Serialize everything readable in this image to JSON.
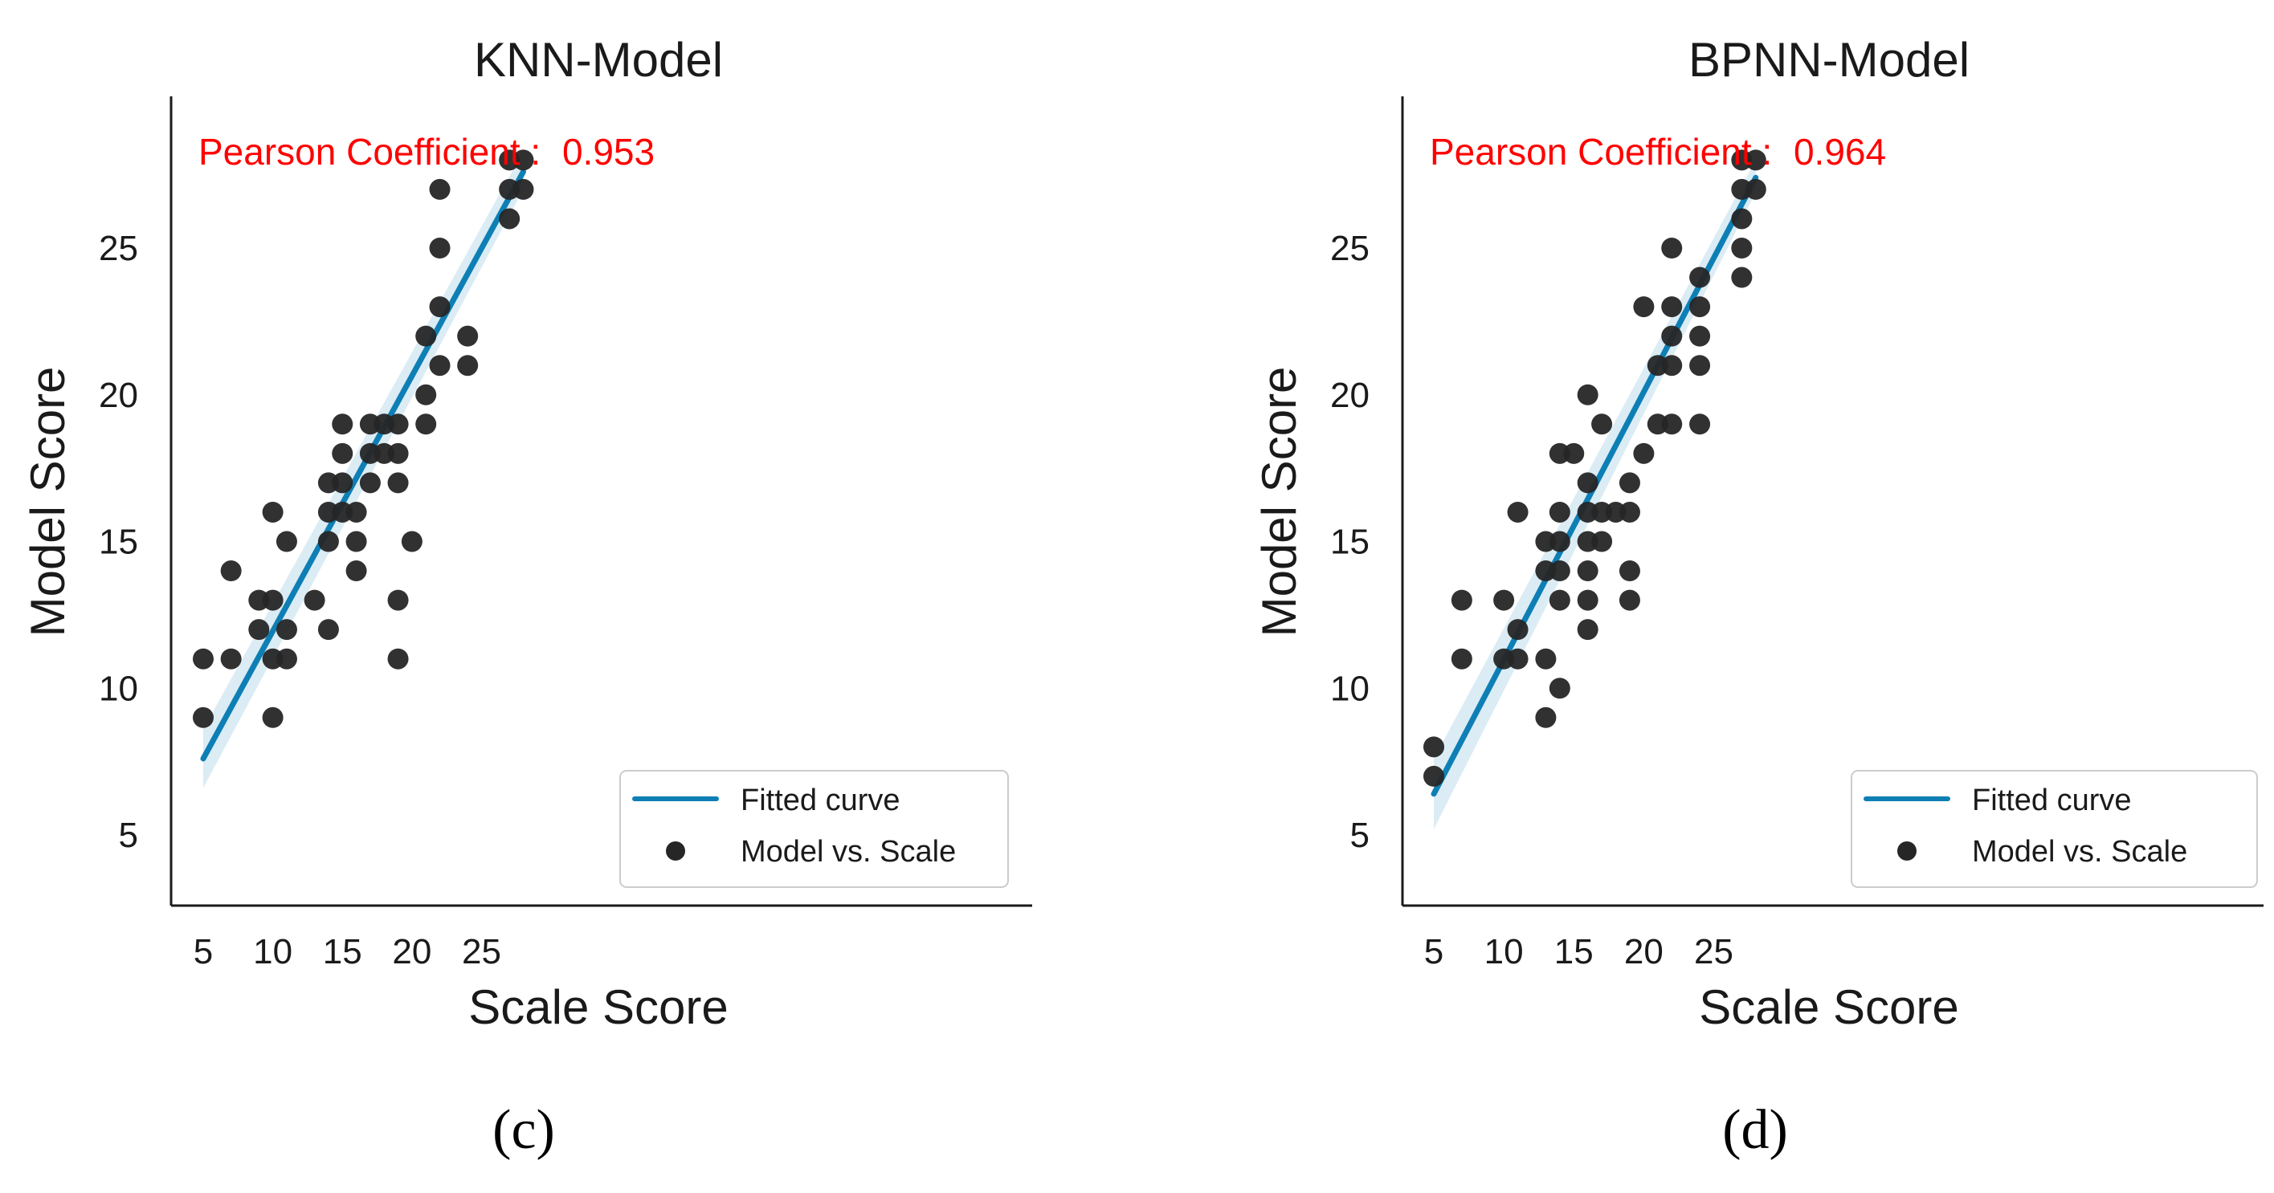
{
  "chart_data": [
    {
      "type": "scatter",
      "title": "KNN-Model",
      "xlabel": "Scale Score",
      "ylabel": "Model Score",
      "xlim": [
        4,
        29.5
      ],
      "ylim": [
        4,
        29.5
      ],
      "xticks": [
        5,
        10,
        15,
        20,
        25
      ],
      "yticks": [
        5,
        10,
        15,
        20,
        25
      ],
      "grid": false,
      "legend_position": "bottom-right",
      "caption": "(c)",
      "annotation": {
        "label": "Pearson Coefficient :",
        "value": "0.953"
      },
      "series": [
        {
          "name": "Fitted curve",
          "kind": "line",
          "color": "#0e7fb5",
          "x": [
            5,
            28
          ],
          "y": [
            7.6,
            27.6
          ],
          "ci_lower": [
            6.6,
            27.0
          ],
          "ci_upper": [
            8.6,
            28.3
          ]
        },
        {
          "name": "Model vs. Scale",
          "kind": "scatter",
          "color": "#262626",
          "points": [
            [
              5,
              11
            ],
            [
              5,
              9
            ],
            [
              7,
              14
            ],
            [
              7,
              11
            ],
            [
              9,
              13
            ],
            [
              9,
              12
            ],
            [
              10,
              16
            ],
            [
              10,
              13
            ],
            [
              10,
              11
            ],
            [
              10,
              9
            ],
            [
              11,
              15
            ],
            [
              11,
              12
            ],
            [
              11,
              11
            ],
            [
              13,
              13
            ],
            [
              14,
              17
            ],
            [
              14,
              16
            ],
            [
              14,
              15
            ],
            [
              14,
              12
            ],
            [
              15,
              19
            ],
            [
              15,
              18
            ],
            [
              15,
              17
            ],
            [
              15,
              16
            ],
            [
              16,
              16
            ],
            [
              16,
              15
            ],
            [
              16,
              14
            ],
            [
              17,
              19
            ],
            [
              17,
              18
            ],
            [
              17,
              17
            ],
            [
              18,
              19
            ],
            [
              18,
              18
            ],
            [
              19,
              19
            ],
            [
              19,
              18
            ],
            [
              19,
              17
            ],
            [
              19,
              13
            ],
            [
              19,
              11
            ],
            [
              20,
              15
            ],
            [
              21,
              22
            ],
            [
              21,
              20
            ],
            [
              21,
              19
            ],
            [
              22,
              27
            ],
            [
              22,
              25
            ],
            [
              22,
              23
            ],
            [
              22,
              21
            ],
            [
              24,
              22
            ],
            [
              24,
              21
            ],
            [
              27,
              28
            ],
            [
              27,
              27
            ],
            [
              27,
              26
            ],
            [
              28,
              28
            ],
            [
              28,
              27
            ]
          ]
        }
      ]
    },
    {
      "type": "scatter",
      "title": "BPNN-Model",
      "xlabel": "Scale Score",
      "ylabel": "Model Score",
      "xlim": [
        4,
        29.5
      ],
      "ylim": [
        4,
        29.5
      ],
      "xticks": [
        5,
        10,
        15,
        20,
        25
      ],
      "yticks": [
        5,
        10,
        15,
        20,
        25
      ],
      "grid": false,
      "legend_position": "bottom-right",
      "caption": "(d)",
      "annotation": {
        "label": "Pearson Coefficient :",
        "value": "0.964"
      },
      "series": [
        {
          "name": "Fitted curve",
          "kind": "line",
          "color": "#0e7fb5",
          "x": [
            5,
            28
          ],
          "y": [
            6.4,
            27.4
          ],
          "ci_lower": [
            5.2,
            26.9
          ],
          "ci_upper": [
            7.6,
            28.0
          ]
        },
        {
          "name": "Model vs. Scale",
          "kind": "scatter",
          "color": "#262626",
          "points": [
            [
              5,
              8
            ],
            [
              5,
              7
            ],
            [
              7,
              13
            ],
            [
              7,
              11
            ],
            [
              10,
              13
            ],
            [
              10,
              11
            ],
            [
              11,
              16
            ],
            [
              11,
              12
            ],
            [
              11,
              11
            ],
            [
              13,
              15
            ],
            [
              13,
              14
            ],
            [
              13,
              11
            ],
            [
              13,
              9
            ],
            [
              14,
              18
            ],
            [
              14,
              16
            ],
            [
              14,
              15
            ],
            [
              14,
              14
            ],
            [
              14,
              13
            ],
            [
              14,
              10
            ],
            [
              15,
              18
            ],
            [
              16,
              20
            ],
            [
              16,
              17
            ],
            [
              16,
              16
            ],
            [
              16,
              15
            ],
            [
              16,
              14
            ],
            [
              16,
              13
            ],
            [
              16,
              12
            ],
            [
              17,
              19
            ],
            [
              17,
              16
            ],
            [
              17,
              15
            ],
            [
              18,
              16
            ],
            [
              19,
              17
            ],
            [
              19,
              16
            ],
            [
              19,
              14
            ],
            [
              19,
              13
            ],
            [
              20,
              23
            ],
            [
              20,
              18
            ],
            [
              21,
              21
            ],
            [
              21,
              19
            ],
            [
              22,
              25
            ],
            [
              22,
              23
            ],
            [
              22,
              22
            ],
            [
              22,
              21
            ],
            [
              22,
              19
            ],
            [
              24,
              24
            ],
            [
              24,
              23
            ],
            [
              24,
              22
            ],
            [
              24,
              21
            ],
            [
              24,
              19
            ],
            [
              27,
              28
            ],
            [
              27,
              27
            ],
            [
              27,
              26
            ],
            [
              27,
              25
            ],
            [
              27,
              24
            ],
            [
              28,
              28
            ],
            [
              28,
              27
            ]
          ]
        }
      ]
    }
  ]
}
